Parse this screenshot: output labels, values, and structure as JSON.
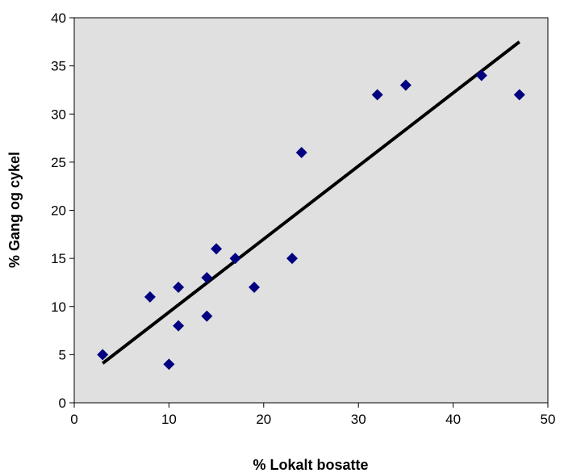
{
  "chart_data": {
    "type": "scatter",
    "title": "",
    "xlabel": "% Lokalt bosatte",
    "ylabel": "% Gang og cykel",
    "xlim": [
      0,
      50
    ],
    "ylim": [
      0,
      40
    ],
    "xticks": [
      0,
      10,
      20,
      30,
      40,
      50
    ],
    "yticks": [
      0,
      5,
      10,
      15,
      20,
      25,
      30,
      35,
      40
    ],
    "grid": false,
    "legend": "none",
    "plot_background": "#e0e0e0",
    "marker": "diamond",
    "marker_color": "#000080",
    "trendline_color": "#000000",
    "points": [
      {
        "x": 3,
        "y": 5
      },
      {
        "x": 8,
        "y": 11
      },
      {
        "x": 10,
        "y": 4
      },
      {
        "x": 11,
        "y": 12
      },
      {
        "x": 11,
        "y": 8
      },
      {
        "x": 14,
        "y": 13
      },
      {
        "x": 14,
        "y": 9
      },
      {
        "x": 15,
        "y": 16
      },
      {
        "x": 17,
        "y": 15
      },
      {
        "x": 19,
        "y": 12
      },
      {
        "x": 23,
        "y": 15
      },
      {
        "x": 24,
        "y": 26
      },
      {
        "x": 32,
        "y": 32
      },
      {
        "x": 35,
        "y": 33
      },
      {
        "x": 43,
        "y": 34
      },
      {
        "x": 47,
        "y": 32
      }
    ],
    "trendline": [
      {
        "x": 3,
        "y": 4.1
      },
      {
        "x": 47,
        "y": 37.5
      }
    ]
  }
}
